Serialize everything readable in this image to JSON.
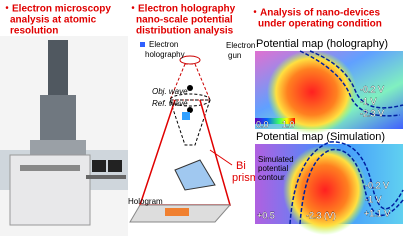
{
  "headings": [
    {
      "lines": [
        "・Electron microscopy",
        "analysis at atomic",
        "resolution"
      ]
    },
    {
      "lines": [
        "・Electron holography",
        "nano-scale potential",
        "distribution analysis"
      ]
    },
    {
      "lines": [
        "・Analysis of nano-devices",
        "under operating condition"
      ]
    }
  ],
  "diagram": {
    "holography_label": [
      "Electron",
      "holography"
    ],
    "gun_label": [
      "Electron",
      "gun"
    ],
    "obj_wave": "Obj. wave",
    "ref_wave": "Ref. wave",
    "biprism": [
      "Bi",
      "prism"
    ],
    "hologram": "Hologram"
  },
  "maps": [
    {
      "title": "Potential map (holography)",
      "labels": [
        "0.0",
        "1.0",
        "-0.2 V",
        "-1 V",
        "-2.3 V"
      ]
    },
    {
      "title": "Potential map (Simulation)",
      "labels": [
        "Simulated",
        "potential",
        "contour",
        "-0.2 V",
        "-1 V",
        "+0.5",
        "-2.3 (V)",
        "+1.1 V"
      ]
    }
  ]
}
